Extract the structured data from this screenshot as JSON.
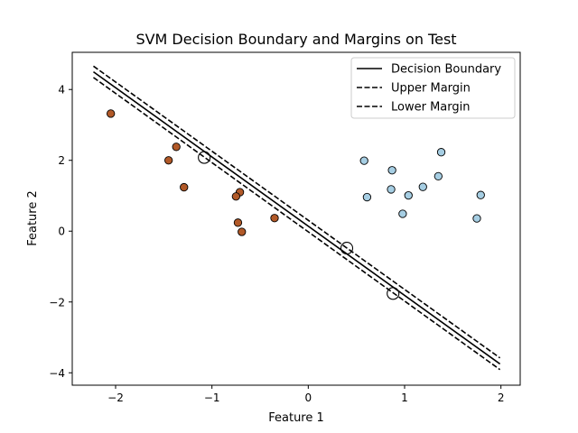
{
  "chart_data": {
    "type": "scatter",
    "title": "SVM Decision Boundary and Margins on Test",
    "xlabel": "Feature 1",
    "ylabel": "Feature 2",
    "xlim": [
      -2.45,
      2.2
    ],
    "ylim": [
      -4.35,
      5.05
    ],
    "xticks": [
      -2,
      -1,
      0,
      1,
      2
    ],
    "yticks": [
      -4,
      -2,
      0,
      2,
      4
    ],
    "xtick_labels": [
      "−2",
      "−1",
      "0",
      "1",
      "2"
    ],
    "ytick_labels": [
      "−4",
      "−2",
      "0",
      "2",
      "4"
    ],
    "grid": false,
    "legend_position": "top-right",
    "colors": {
      "class_0": "#b15928",
      "class_1": "#a6cee3",
      "edge": "#000000",
      "line": "#000000"
    },
    "class_0_points": {
      "x": [
        -2.05,
        -1.37,
        -1.45,
        -1.29,
        -0.71,
        -0.75,
        -0.73,
        -0.69,
        -0.35
      ],
      "y": [
        3.32,
        2.38,
        2.0,
        1.24,
        1.1,
        0.98,
        0.24,
        -0.02,
        0.37
      ]
    },
    "class_1_points": {
      "x": [
        0.58,
        0.61,
        0.87,
        0.86,
        1.04,
        0.98,
        1.19,
        1.35,
        1.38,
        1.75,
        1.79
      ],
      "y": [
        1.99,
        0.96,
        1.72,
        1.18,
        1.01,
        0.49,
        1.25,
        1.55,
        2.23,
        0.36,
        1.02
      ]
    },
    "support_vectors": {
      "x": [
        -1.08,
        0.4,
        0.88
      ],
      "y": [
        2.08,
        -0.48,
        -1.76
      ]
    },
    "lines": [
      {
        "name": "Decision Boundary",
        "style": "solid",
        "x": [
          -2.23,
          1.99
        ],
        "y": [
          4.5,
          -3.75
        ]
      },
      {
        "name": "Upper Margin",
        "style": "dashed",
        "x": [
          -2.23,
          1.99
        ],
        "y": [
          4.66,
          -3.58
        ]
      },
      {
        "name": "Lower Margin",
        "style": "dashed",
        "x": [
          -2.23,
          1.99
        ],
        "y": [
          4.34,
          -3.91
        ]
      }
    ]
  }
}
